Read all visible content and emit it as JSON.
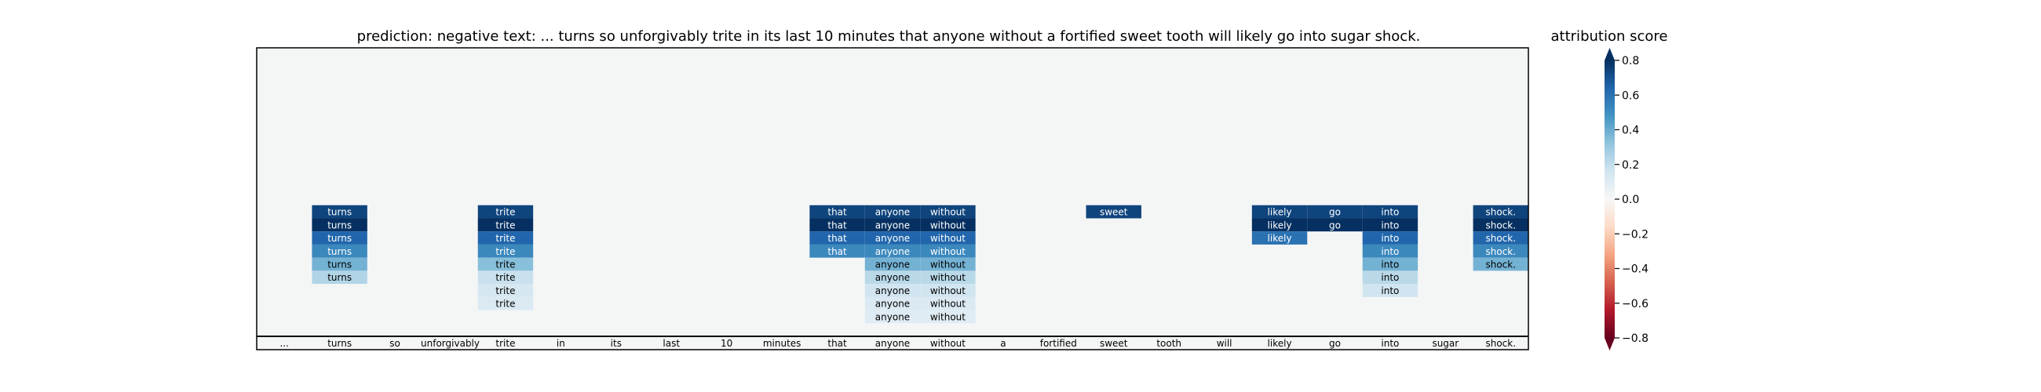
{
  "chart_data": {
    "type": "heatmap",
    "title": "prediction:  negative     text:  ... turns so unforgivably trite in its last 10 minutes that anyone without a fortified sweet tooth will likely go into sugar shock.",
    "tokens": [
      "...",
      "turns",
      "so",
      "unforgivably",
      "trite",
      "in",
      "its",
      "last",
      "10",
      "minutes",
      "that",
      "anyone",
      "without",
      "a",
      "fortified",
      "sweet",
      "tooth",
      "will",
      "likely",
      "go",
      "into",
      "sugar",
      "shock."
    ],
    "num_layers": 22,
    "cells": [
      {
        "token": 1,
        "layers": [
          12,
          13,
          14,
          15,
          16,
          17
        ],
        "values": [
          0.74,
          0.84,
          0.64,
          0.52,
          0.38,
          0.24
        ]
      },
      {
        "token": 4,
        "layers": [
          12,
          13,
          14,
          15,
          16,
          17,
          18,
          19
        ],
        "values": [
          0.74,
          0.84,
          0.64,
          0.52,
          0.34,
          0.18,
          0.14,
          0.12
        ]
      },
      {
        "token": 10,
        "layers": [
          12,
          13,
          14,
          15
        ],
        "values": [
          0.74,
          0.84,
          0.64,
          0.52
        ]
      },
      {
        "token": 11,
        "layers": [
          12,
          13,
          14,
          15,
          16,
          17,
          18,
          19,
          20
        ],
        "values": [
          0.74,
          0.84,
          0.64,
          0.52,
          0.38,
          0.22,
          0.16,
          0.12,
          0.1
        ]
      },
      {
        "token": 12,
        "layers": [
          12,
          13,
          14,
          15,
          16,
          17,
          18,
          19,
          20
        ],
        "values": [
          0.74,
          0.84,
          0.64,
          0.52,
          0.38,
          0.22,
          0.16,
          0.12,
          0.1
        ]
      },
      {
        "token": 15,
        "layers": [
          12
        ],
        "values": [
          0.74
        ]
      },
      {
        "token": 18,
        "layers": [
          12,
          13,
          14
        ],
        "values": [
          0.74,
          0.84,
          0.6
        ]
      },
      {
        "token": 19,
        "layers": [
          12,
          13
        ],
        "values": [
          0.74,
          0.84
        ]
      },
      {
        "token": 20,
        "layers": [
          12,
          13,
          14,
          15,
          16,
          17,
          18
        ],
        "values": [
          0.74,
          0.84,
          0.64,
          0.52,
          0.38,
          0.22,
          0.16
        ]
      },
      {
        "token": 22,
        "layers": [
          12,
          13,
          14,
          15,
          16
        ],
        "values": [
          0.74,
          0.84,
          0.64,
          0.52,
          0.38
        ]
      }
    ],
    "colorbar": {
      "label": "attribution score",
      "colormap": "RdBu",
      "vmin": -0.8,
      "vmax": 0.8,
      "ticks": [
        -0.8,
        -0.6,
        -0.4,
        -0.2,
        0.0,
        0.2,
        0.4,
        0.6,
        0.8
      ],
      "tick_labels": [
        "−0.8",
        "−0.6",
        "−0.4",
        "−0.2",
        "0.0",
        "0.2",
        "0.4",
        "0.6",
        "0.8"
      ]
    }
  },
  "colors": {
    "background_empty": "#f4f6f6",
    "frame": "#000000",
    "text_dark": "#000000",
    "text_light": "#ffffff"
  }
}
